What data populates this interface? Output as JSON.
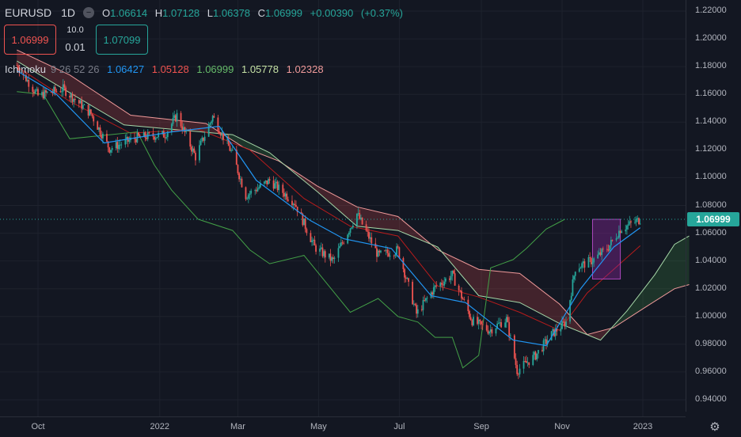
{
  "header": {
    "symbol": "EURUSD",
    "timeframe": "1D",
    "marker_icon": "minus-circle-icon",
    "ohlc": {
      "open_label": "O",
      "open": "1.06614",
      "high_label": "H",
      "high": "1.07128",
      "low_label": "L",
      "low": "1.06378",
      "close_label": "C",
      "close": "1.06999",
      "change": "+0.00390",
      "change_pct": "(+0.37%)"
    }
  },
  "trade": {
    "sell_price": "1.06999",
    "buy_price": "1.07099",
    "quantity": "10.0",
    "spread": "0.01"
  },
  "indicator": {
    "name": "Ichimoku",
    "params": "9 26 52 26",
    "conversion": "1.06427",
    "base": "1.05128",
    "lagging": "1.06999",
    "lead1": "1.05778",
    "lead2": "1.02328"
  },
  "price_axis": {
    "ticks": [
      "1.22000",
      "1.20000",
      "1.18000",
      "1.16000",
      "1.14000",
      "1.12000",
      "1.10000",
      "1.08000",
      "1.06000",
      "1.04000",
      "1.02000",
      "1.00000",
      "0.98000",
      "0.96000",
      "0.94000"
    ],
    "last_price": "1.06999"
  },
  "time_axis": {
    "ticks": [
      "Oct",
      "2022",
      "Mar",
      "May",
      "Jul",
      "Sep",
      "Nov",
      "2023"
    ]
  },
  "settings_icon": "gear-icon",
  "colors": {
    "background": "#131722",
    "grid": "#1e222d",
    "up": "#26a69a",
    "down": "#ef5350",
    "conversion": "#2196f3",
    "base": "#b71c1c",
    "lagging": "#43a047",
    "lead1": "#a5d6a7",
    "lead2": "#ef9a9a",
    "accent_box": "#9c27b0"
  },
  "chart_data": {
    "type": "candlestick",
    "symbol": "EURUSD",
    "interval": "1D",
    "y_range": [
      0.93,
      1.225
    ],
    "price_ticks": [
      1.22,
      1.2,
      1.18,
      1.16,
      1.14,
      1.12,
      1.1,
      1.08,
      1.06,
      1.04,
      1.02,
      1.0,
      0.98,
      0.96,
      0.94
    ],
    "close_path": [
      [
        "2021-09-15",
        1.181
      ],
      [
        "2021-10-01",
        1.159
      ],
      [
        "2021-10-20",
        1.164
      ],
      [
        "2021-11-10",
        1.146
      ],
      [
        "2021-11-24",
        1.121
      ],
      [
        "2021-12-15",
        1.129
      ],
      [
        "2022-01-05",
        1.131
      ],
      [
        "2022-01-14",
        1.145
      ],
      [
        "2022-01-28",
        1.115
      ],
      [
        "2022-02-10",
        1.144
      ],
      [
        "2022-02-25",
        1.117
      ],
      [
        "2022-03-07",
        1.087
      ],
      [
        "2022-03-25",
        1.098
      ],
      [
        "2022-04-13",
        1.082
      ],
      [
        "2022-04-28",
        1.05
      ],
      [
        "2022-05-12",
        1.04
      ],
      [
        "2022-05-30",
        1.074
      ],
      [
        "2022-06-15",
        1.044
      ],
      [
        "2022-06-30",
        1.048
      ],
      [
        "2022-07-14",
        1.002
      ],
      [
        "2022-07-28",
        1.021
      ],
      [
        "2022-08-10",
        1.03
      ],
      [
        "2022-08-25",
        0.997
      ],
      [
        "2022-09-07",
        0.99
      ],
      [
        "2022-09-20",
        0.998
      ],
      [
        "2022-09-28",
        0.961
      ],
      [
        "2022-10-12",
        0.972
      ],
      [
        "2022-10-24",
        0.987
      ],
      [
        "2022-11-04",
        0.996
      ],
      [
        "2022-11-11",
        1.035
      ],
      [
        "2022-11-25",
        1.041
      ],
      [
        "2022-12-06",
        1.05
      ],
      [
        "2022-12-15",
        1.063
      ],
      [
        "2022-12-30",
        1.07
      ]
    ],
    "conversion_path": [
      [
        "2021-09-15",
        1.177
      ],
      [
        "2021-10-15",
        1.16
      ],
      [
        "2021-11-20",
        1.125
      ],
      [
        "2022-01-10",
        1.133
      ],
      [
        "2022-02-15",
        1.137
      ],
      [
        "2022-03-15",
        1.098
      ],
      [
        "2022-04-25",
        1.069
      ],
      [
        "2022-05-20",
        1.056
      ],
      [
        "2022-06-25",
        1.049
      ],
      [
        "2022-07-25",
        1.015
      ],
      [
        "2022-08-20",
        1.01
      ],
      [
        "2022-09-25",
        0.983
      ],
      [
        "2022-10-20",
        0.979
      ],
      [
        "2022-11-15",
        1.02
      ],
      [
        "2022-12-10",
        1.05
      ],
      [
        "2022-12-30",
        1.064
      ]
    ],
    "base_path": [
      [
        "2021-09-15",
        1.18
      ],
      [
        "2021-10-25",
        1.155
      ],
      [
        "2021-12-10",
        1.132
      ],
      [
        "2022-01-30",
        1.135
      ],
      [
        "2022-03-10",
        1.12
      ],
      [
        "2022-04-20",
        1.085
      ],
      [
        "2022-05-25",
        1.065
      ],
      [
        "2022-06-30",
        1.058
      ],
      [
        "2022-07-30",
        1.022
      ],
      [
        "2022-08-30",
        1.014
      ],
      [
        "2022-09-30",
        1.003
      ],
      [
        "2022-10-30",
        0.99
      ],
      [
        "2022-11-20",
        1.017
      ],
      [
        "2022-12-30",
        1.051
      ]
    ],
    "lagging_path": [
      [
        "2021-09-15",
        1.162
      ],
      [
        "2021-10-05",
        1.16
      ],
      [
        "2021-10-25",
        1.128
      ],
      [
        "2021-12-15",
        1.133
      ],
      [
        "2021-12-28",
        1.109
      ],
      [
        "2022-01-10",
        1.091
      ],
      [
        "2022-01-30",
        1.07
      ],
      [
        "2022-02-25",
        1.062
      ],
      [
        "2022-03-10",
        1.048
      ],
      [
        "2022-03-25",
        1.038
      ],
      [
        "2022-04-20",
        1.044
      ],
      [
        "2022-05-25",
        1.003
      ],
      [
        "2022-06-15",
        1.013
      ],
      [
        "2022-06-30",
        1.0
      ],
      [
        "2022-07-15",
        0.996
      ],
      [
        "2022-07-28",
        0.985
      ],
      [
        "2022-08-10",
        0.985
      ],
      [
        "2022-08-18",
        0.963
      ],
      [
        "2022-08-30",
        0.972
      ],
      [
        "2022-09-08",
        1.035
      ],
      [
        "2022-09-25",
        1.041
      ],
      [
        "2022-10-05",
        1.049
      ],
      [
        "2022-10-20",
        1.063
      ],
      [
        "2022-11-03",
        1.07
      ]
    ],
    "lead1_path": [
      [
        "2021-09-15",
        1.184
      ],
      [
        "2021-10-20",
        1.164
      ],
      [
        "2021-12-05",
        1.138
      ],
      [
        "2022-01-20",
        1.134
      ],
      [
        "2022-02-25",
        1.131
      ],
      [
        "2022-03-25",
        1.118
      ],
      [
        "2022-04-30",
        1.09
      ],
      [
        "2022-05-30",
        1.065
      ],
      [
        "2022-06-30",
        1.062
      ],
      [
        "2022-07-30",
        1.05
      ],
      [
        "2022-08-30",
        1.015
      ],
      [
        "2022-09-30",
        1.01
      ],
      [
        "2022-10-30",
        0.995
      ],
      [
        "2022-11-30",
        0.983
      ],
      [
        "2022-12-20",
        1.004
      ],
      [
        "2023-01-10",
        1.03
      ],
      [
        "2023-01-25",
        1.052
      ],
      [
        "2023-02-05",
        1.058
      ]
    ],
    "lead2_path": [
      [
        "2021-09-15",
        1.192
      ],
      [
        "2021-10-25",
        1.174
      ],
      [
        "2021-12-10",
        1.145
      ],
      [
        "2022-02-05",
        1.139
      ],
      [
        "2022-03-05",
        1.122
      ],
      [
        "2022-04-01",
        1.112
      ],
      [
        "2022-04-30",
        1.094
      ],
      [
        "2022-05-30",
        1.079
      ],
      [
        "2022-06-30",
        1.072
      ],
      [
        "2022-07-30",
        1.048
      ],
      [
        "2022-08-30",
        1.034
      ],
      [
        "2022-09-30",
        1.031
      ],
      [
        "2022-10-30",
        1.009
      ],
      [
        "2022-11-20",
        0.987
      ],
      [
        "2022-12-10",
        0.992
      ],
      [
        "2023-01-05",
        1.008
      ],
      [
        "2023-01-25",
        1.02
      ],
      [
        "2023-02-05",
        1.023
      ]
    ],
    "last_price": 1.06999
  }
}
